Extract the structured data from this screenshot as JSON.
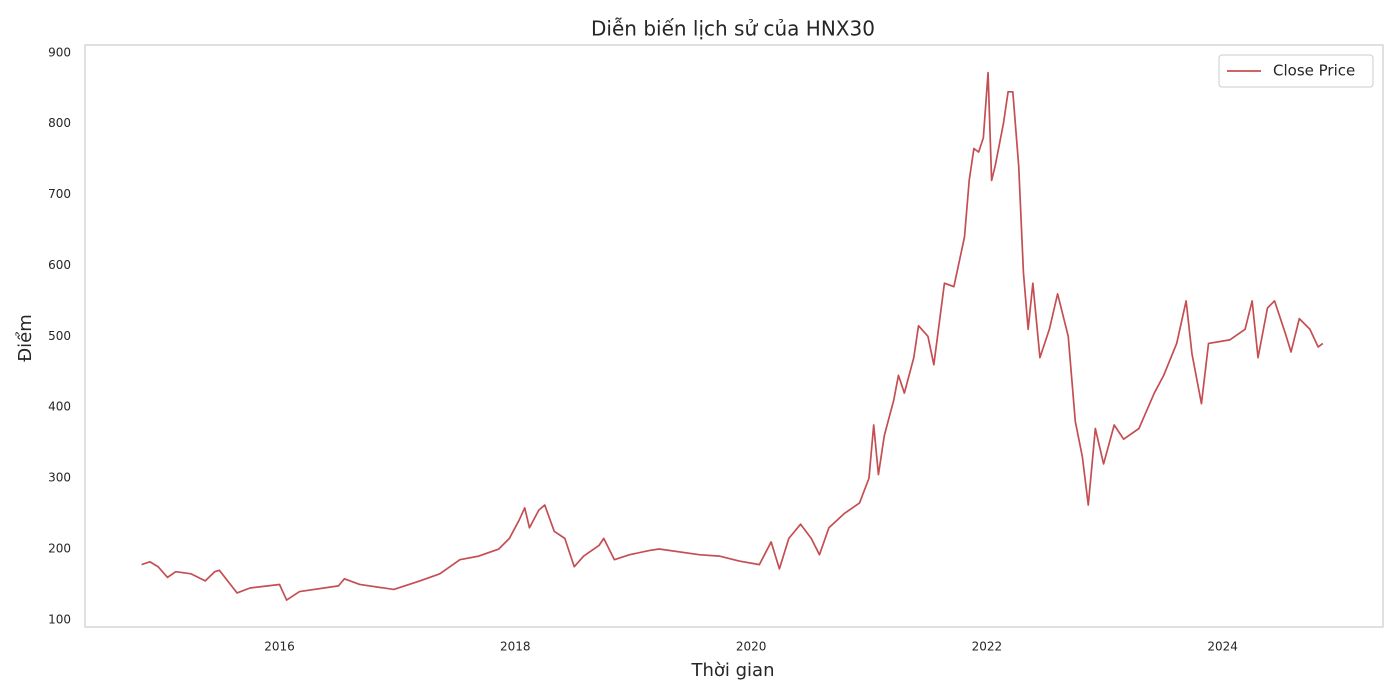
{
  "chart_data": {
    "type": "line",
    "title": "Diễn biến lịch sử của HNX30",
    "x_label": "Thời gian",
    "y_label": "Điểm",
    "x": [
      2014.83,
      2014.9,
      2014.97,
      2015.05,
      2015.12,
      2015.25,
      2015.37,
      2015.45,
      2015.49,
      2015.64,
      2015.75,
      2016.0,
      2016.06,
      2016.17,
      2016.5,
      2016.55,
      2016.68,
      2016.97,
      2017.19,
      2017.36,
      2017.53,
      2017.69,
      2017.86,
      2017.95,
      2018.03,
      2018.08,
      2018.12,
      2018.2,
      2018.25,
      2018.33,
      2018.42,
      2018.5,
      2018.58,
      2018.71,
      2018.75,
      2018.84,
      2018.97,
      2019.14,
      2019.22,
      2019.56,
      2019.73,
      2019.9,
      2020.07,
      2020.17,
      2020.24,
      2020.32,
      2020.42,
      2020.51,
      2020.58,
      2020.66,
      2020.79,
      2020.92,
      2021.0,
      2021.04,
      2021.08,
      2021.13,
      2021.21,
      2021.25,
      2021.3,
      2021.38,
      2021.42,
      2021.5,
      2021.55,
      2021.64,
      2021.72,
      2021.81,
      2021.85,
      2021.89,
      2021.93,
      2021.97,
      2022.01,
      2022.04,
      2022.07,
      2022.14,
      2022.18,
      2022.22,
      2022.27,
      2022.31,
      2022.35,
      2022.39,
      2022.45,
      2022.53,
      2022.6,
      2022.69,
      2022.75,
      2022.81,
      2022.86,
      2022.92,
      2022.99,
      2023.08,
      2023.16,
      2023.29,
      2023.42,
      2023.5,
      2023.61,
      2023.69,
      2023.74,
      2023.82,
      2023.88,
      2024.06,
      2024.19,
      2024.25,
      2024.3,
      2024.38,
      2024.44,
      2024.53,
      2024.58,
      2024.65,
      2024.74,
      2024.81,
      2024.85
    ],
    "series": [
      {
        "name": "Close Price",
        "color": "#c44e52",
        "values": [
          178,
          182,
          175,
          160,
          168,
          165,
          155,
          168,
          170,
          138,
          145,
          150,
          128,
          140,
          148,
          158,
          150,
          143,
          155,
          165,
          185,
          190,
          200,
          215,
          240,
          258,
          230,
          255,
          262,
          225,
          215,
          175,
          190,
          205,
          215,
          185,
          192,
          198,
          200,
          192,
          190,
          183,
          178,
          210,
          172,
          215,
          235,
          215,
          192,
          230,
          250,
          265,
          300,
          375,
          305,
          360,
          410,
          445,
          420,
          470,
          515,
          500,
          460,
          575,
          570,
          640,
          720,
          765,
          760,
          780,
          872,
          720,
          740,
          800,
          845,
          845,
          740,
          590,
          510,
          575,
          470,
          510,
          560,
          500,
          380,
          330,
          262,
          370,
          320,
          375,
          355,
          370,
          420,
          445,
          490,
          550,
          475,
          405,
          490,
          495,
          510,
          550,
          470,
          540,
          550,
          505,
          478,
          525,
          510,
          485,
          490
        ]
      }
    ],
    "xlim": [
      2014.35,
      2025.36
    ],
    "xticks": [
      2016,
      2018,
      2020,
      2022,
      2024
    ],
    "ylim": [
      90,
      911
    ],
    "yticks": [
      100,
      200,
      300,
      400,
      500,
      600,
      700,
      800,
      900
    ],
    "grid": false,
    "legend": "upper right"
  }
}
